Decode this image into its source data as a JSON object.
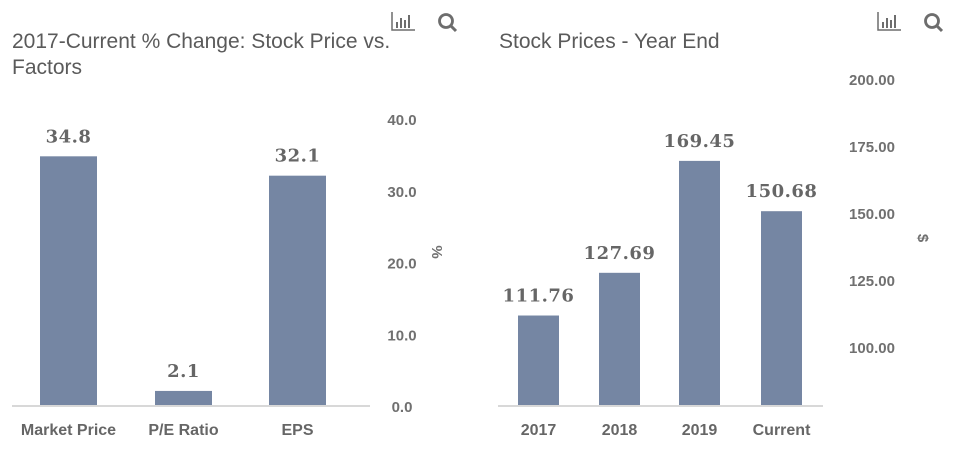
{
  "colors": {
    "bar": "#7586a3",
    "axis": "#d8d8d8"
  },
  "icons": [
    "bar-chart-icon",
    "search-icon"
  ],
  "chart_data": [
    {
      "type": "bar",
      "title_line1": "2017-Current % Change: Stock Price vs.",
      "title_line2": "Factors",
      "categories": [
        "Market Price",
        "P/E Ratio",
        "EPS"
      ],
      "values": [
        34.8,
        2.1,
        32.1
      ],
      "value_labels": [
        "34.8",
        "2.1",
        "32.1"
      ],
      "ylabel": "%",
      "ylim": [
        0,
        40
      ],
      "yticks": [
        "0.0",
        "10.0",
        "20.0",
        "30.0",
        "40.0"
      ],
      "yaxis_side": "right",
      "grid": false
    },
    {
      "type": "bar",
      "title": "Stock Prices - Year End",
      "categories": [
        "2017",
        "2018",
        "2019",
        "Current"
      ],
      "values": [
        111.76,
        127.69,
        169.45,
        150.68
      ],
      "value_labels": [
        "111.76",
        "127.69",
        "169.45",
        "150.68"
      ],
      "ylabel": "$",
      "ylim": [
        78,
        200
      ],
      "yticks": [
        "100.00",
        "125.00",
        "150.00",
        "175.00",
        "200.00"
      ],
      "yaxis_side": "right",
      "grid": false
    }
  ]
}
